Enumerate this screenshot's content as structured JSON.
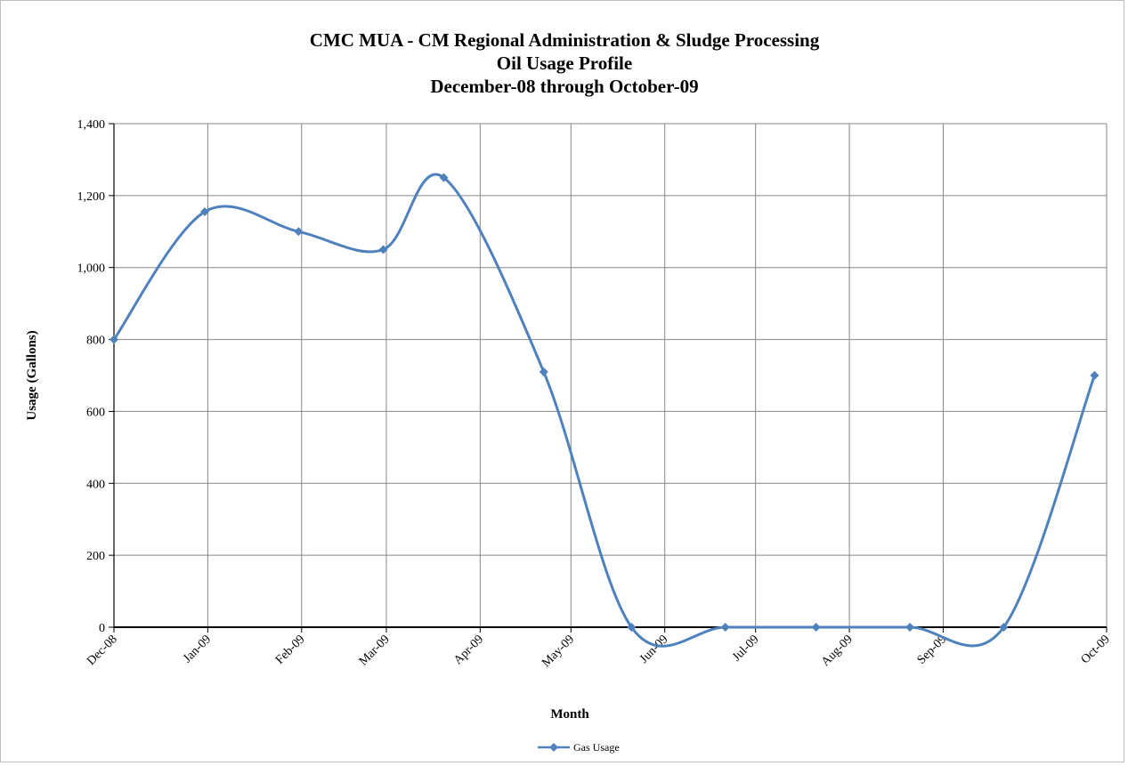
{
  "chart_data": {
    "type": "line",
    "title_lines": [
      "CMC MUA - CM Regional Administration & Sludge Processing",
      "Oil Usage Profile",
      "December-08 through October-09"
    ],
    "xlabel": "Month",
    "ylabel": "Usage  (Gallons)",
    "x_tick_labels": [
      "Dec-08",
      "Jan-09",
      "Feb-09",
      "Mar-09",
      "Apr-09",
      "May-09",
      "Jun-09",
      "Jul-09",
      "Aug-09",
      "Sep-09",
      "Oct-09"
    ],
    "y_tick_labels": [
      "0",
      "200",
      "400",
      "600",
      "800",
      "1,000",
      "1,200",
      "1,400"
    ],
    "ylim": [
      0,
      1400
    ],
    "y_ticks": [
      0,
      200,
      400,
      600,
      800,
      1000,
      1200,
      1400
    ],
    "grid": true,
    "smooth": true,
    "legend_position": "bottom",
    "series": [
      {
        "name": "Gas Usage",
        "color": "#4F81BD",
        "marker": "diamond",
        "points": [
          {
            "date": "2008-12-01",
            "value": 800
          },
          {
            "date": "2008-12-31",
            "value": 1155
          },
          {
            "date": "2009-01-31",
            "value": 1100
          },
          {
            "date": "2009-02-28",
            "value": 1050
          },
          {
            "date": "2009-03-20",
            "value": 1250
          },
          {
            "date": "2009-04-22",
            "value": 710
          },
          {
            "date": "2009-05-21",
            "value": 0
          },
          {
            "date": "2009-06-21",
            "value": 0
          },
          {
            "date": "2009-07-21",
            "value": 0
          },
          {
            "date": "2009-08-21",
            "value": 0
          },
          {
            "date": "2009-09-21",
            "value": 0
          },
          {
            "date": "2009-10-21",
            "value": 700
          }
        ]
      }
    ]
  }
}
